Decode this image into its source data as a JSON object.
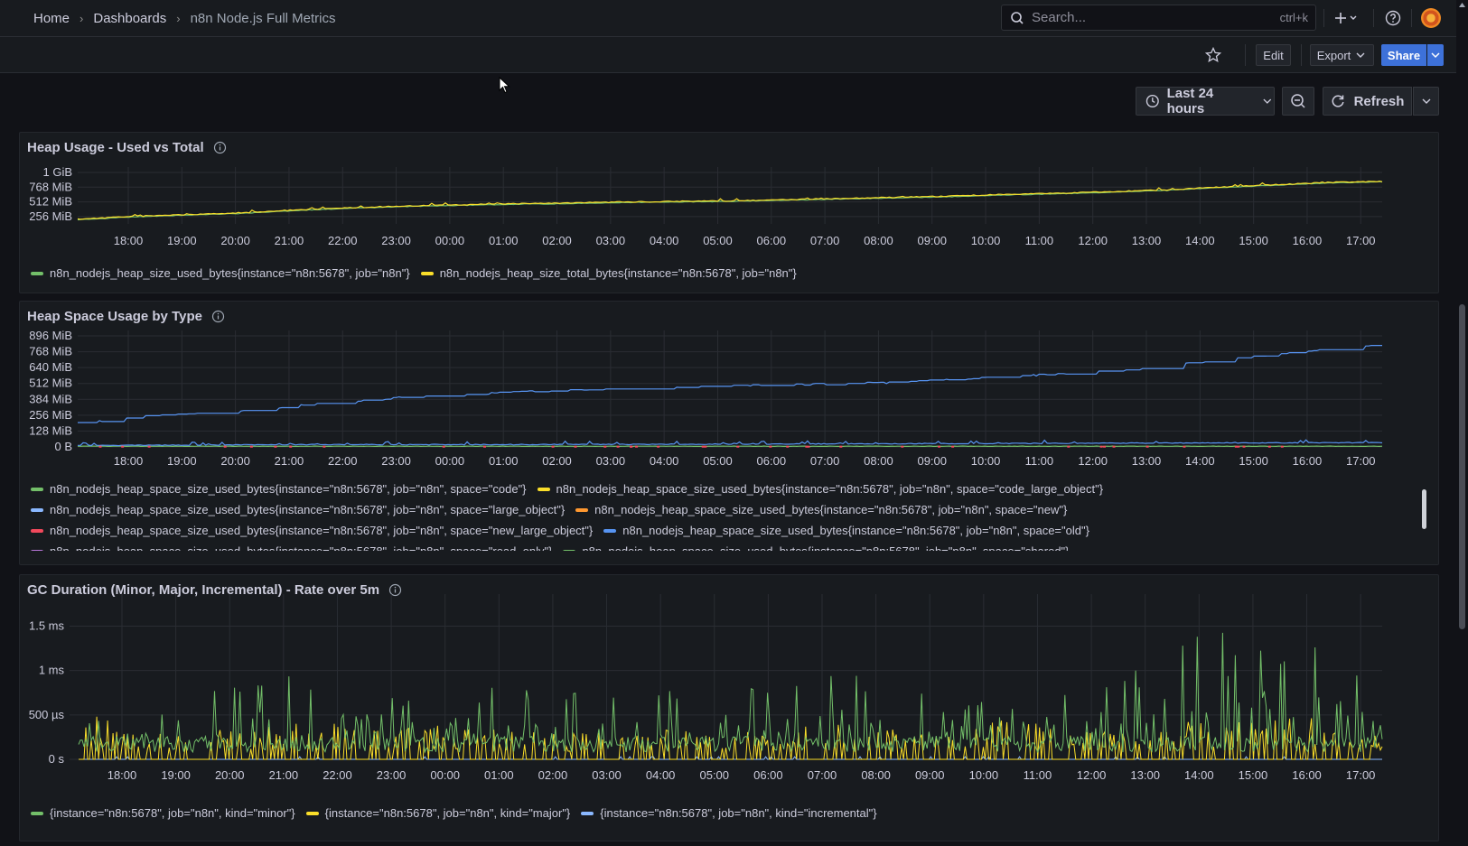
{
  "breadcrumb": {
    "home": "Home",
    "dashboards": "Dashboards",
    "current": "n8n Node.js Full Metrics"
  },
  "search": {
    "placeholder": "Search...",
    "shortcut": "ctrl+k"
  },
  "toolbar": {
    "edit": "Edit",
    "export": "Export",
    "share": "Share"
  },
  "timebar": {
    "range": "Last 24 hours",
    "refresh": "Refresh"
  },
  "colors": {
    "green": "#73bf69",
    "yellow": "#fade2a",
    "blue": "#8ab8ff",
    "orange": "#ff9830",
    "red": "#f2495c",
    "midblue": "#5794f2",
    "purple": "#b877d9"
  },
  "panels": [
    {
      "title": "Heap Usage - Used vs Total",
      "legend": [
        {
          "label": "n8n_nodejs_heap_size_used_bytes{instance=\"n8n:5678\", job=\"n8n\"}",
          "color": "#73bf69"
        },
        {
          "label": "n8n_nodejs_heap_size_total_bytes{instance=\"n8n:5678\", job=\"n8n\"}",
          "color": "#fade2a"
        }
      ]
    },
    {
      "title": "Heap Space Usage by Type",
      "legend": [
        {
          "label": "n8n_nodejs_heap_space_size_used_bytes{instance=\"n8n:5678\", job=\"n8n\", space=\"code\"}",
          "color": "#73bf69"
        },
        {
          "label": "n8n_nodejs_heap_space_size_used_bytes{instance=\"n8n:5678\", job=\"n8n\", space=\"code_large_object\"}",
          "color": "#fade2a"
        },
        {
          "label": "n8n_nodejs_heap_space_size_used_bytes{instance=\"n8n:5678\", job=\"n8n\", space=\"large_object\"}",
          "color": "#8ab8ff"
        },
        {
          "label": "n8n_nodejs_heap_space_size_used_bytes{instance=\"n8n:5678\", job=\"n8n\", space=\"new\"}",
          "color": "#ff9830"
        },
        {
          "label": "n8n_nodejs_heap_space_size_used_bytes{instance=\"n8n:5678\", job=\"n8n\", space=\"new_large_object\"}",
          "color": "#f2495c"
        },
        {
          "label": "n8n_nodejs_heap_space_size_used_bytes{instance=\"n8n:5678\", job=\"n8n\", space=\"old\"}",
          "color": "#5794f2"
        },
        {
          "label": "n8n_nodejs_heap_space_size_used_bytes{instance=\"n8n:5678\", job=\"n8n\", space=\"read_only\"}",
          "color": "#b877d9"
        },
        {
          "label": "n8n_nodejs_heap_space_size_used_bytes{instance=\"n8n:5678\", job=\"n8n\", space=\"shared\"}",
          "color": "#73bf69"
        }
      ]
    },
    {
      "title": "GC Duration (Minor, Major, Incremental) - Rate over 5m",
      "legend": [
        {
          "label": "{instance=\"n8n:5678\", job=\"n8n\", kind=\"minor\"}",
          "color": "#73bf69"
        },
        {
          "label": "{instance=\"n8n:5678\", job=\"n8n\", kind=\"major\"}",
          "color": "#fade2a"
        },
        {
          "label": "{instance=\"n8n:5678\", job=\"n8n\", kind=\"incremental\"}",
          "color": "#8ab8ff"
        }
      ]
    }
  ],
  "chart_data": [
    {
      "type": "line",
      "title": "Heap Usage - Used vs Total",
      "x_ticks": [
        "18:00",
        "19:00",
        "20:00",
        "21:00",
        "22:00",
        "23:00",
        "00:00",
        "01:00",
        "02:00",
        "03:00",
        "04:00",
        "05:00",
        "06:00",
        "07:00",
        "08:00",
        "09:00",
        "10:00",
        "11:00",
        "12:00",
        "13:00",
        "14:00",
        "15:00",
        "16:00",
        "17:00"
      ],
      "y_ticks": [
        "256 MiB",
        "512 MiB",
        "768 MiB",
        "1 GiB"
      ],
      "ylim_mib": [
        128,
        1024
      ],
      "series": [
        {
          "name": "n8n_nodejs_heap_size_used_bytes{instance=\"n8n:5678\", job=\"n8n\"}",
          "x": [
            "17:00",
            "18:00",
            "19:00",
            "20:00",
            "21:00",
            "22:00",
            "23:00",
            "00:00",
            "01:00",
            "02:00",
            "03:00",
            "04:00",
            "05:00",
            "06:00",
            "07:00",
            "08:00",
            "09:00",
            "10:00",
            "11:00",
            "12:00",
            "13:00",
            "14:00",
            "15:00",
            "16:00",
            "17:00"
          ],
          "values_mib": [
            200,
            250,
            280,
            310,
            360,
            400,
            430,
            450,
            470,
            480,
            500,
            510,
            520,
            540,
            560,
            580,
            600,
            630,
            650,
            680,
            710,
            760,
            800,
            840,
            860
          ]
        },
        {
          "name": "n8n_nodejs_heap_size_total_bytes{instance=\"n8n:5678\", job=\"n8n\"}",
          "x": [
            "17:00",
            "18:00",
            "19:00",
            "20:00",
            "21:00",
            "22:00",
            "23:00",
            "00:00",
            "01:00",
            "02:00",
            "03:00",
            "04:00",
            "05:00",
            "06:00",
            "07:00",
            "08:00",
            "09:00",
            "10:00",
            "11:00",
            "12:00",
            "13:00",
            "14:00",
            "15:00",
            "16:00",
            "17:00"
          ],
          "values_mib": [
            210,
            260,
            290,
            320,
            370,
            410,
            440,
            460,
            480,
            490,
            510,
            520,
            530,
            550,
            570,
            590,
            610,
            640,
            660,
            690,
            720,
            770,
            810,
            850,
            870
          ]
        }
      ]
    },
    {
      "type": "line",
      "title": "Heap Space Usage by Type",
      "x_ticks": [
        "18:00",
        "19:00",
        "20:00",
        "21:00",
        "22:00",
        "23:00",
        "00:00",
        "01:00",
        "02:00",
        "03:00",
        "04:00",
        "05:00",
        "06:00",
        "07:00",
        "08:00",
        "09:00",
        "10:00",
        "11:00",
        "12:00",
        "13:00",
        "14:00",
        "15:00",
        "16:00",
        "17:00"
      ],
      "y_ticks": [
        "0 B",
        "128 MiB",
        "256 MiB",
        "384 MiB",
        "512 MiB",
        "640 MiB",
        "768 MiB",
        "896 MiB"
      ],
      "ylim_mib": [
        0,
        896
      ],
      "series": [
        {
          "name": "old",
          "x": [
            "17:00",
            "18:00",
            "19:00",
            "20:00",
            "21:00",
            "22:00",
            "23:00",
            "00:00",
            "01:00",
            "02:00",
            "03:00",
            "04:00",
            "05:00",
            "06:00",
            "07:00",
            "08:00",
            "09:00",
            "10:00",
            "11:00",
            "12:00",
            "13:00",
            "14:00",
            "15:00",
            "16:00",
            "17:00"
          ],
          "values_mib": [
            190,
            240,
            270,
            290,
            330,
            370,
            400,
            420,
            440,
            460,
            470,
            480,
            490,
            500,
            510,
            520,
            540,
            560,
            590,
            620,
            650,
            700,
            740,
            790,
            820
          ]
        },
        {
          "name": "new",
          "x": [
            "17:00",
            "21:00",
            "01:00",
            "05:00",
            "09:00",
            "13:00",
            "17:00"
          ],
          "values_mib": [
            8,
            16,
            16,
            20,
            24,
            28,
            32
          ]
        },
        {
          "name": "code",
          "x": [
            "17:00",
            "17:00"
          ],
          "values_mib": [
            4,
            4
          ]
        }
      ]
    },
    {
      "type": "line",
      "title": "GC Duration (Minor, Major, Incremental) - Rate over 5m",
      "x_ticks": [
        "18:00",
        "19:00",
        "20:00",
        "21:00",
        "22:00",
        "23:00",
        "00:00",
        "01:00",
        "02:00",
        "03:00",
        "04:00",
        "05:00",
        "06:00",
        "07:00",
        "08:00",
        "09:00",
        "10:00",
        "11:00",
        "12:00",
        "13:00",
        "14:00",
        "15:00",
        "16:00",
        "17:00"
      ],
      "y_ticks": [
        "0 s",
        "500 µs",
        "1 ms",
        "1.5 ms"
      ],
      "ylim_ms": [
        0,
        1.5
      ],
      "series": [
        {
          "name": "{instance=\"n8n:5678\", job=\"n8n\", kind=\"minor\"}",
          "x": [
            "17:00",
            "18:00",
            "19:00",
            "20:00",
            "21:00",
            "22:00",
            "23:00",
            "00:00",
            "01:00",
            "02:00",
            "03:00",
            "04:00",
            "05:00",
            "06:00",
            "07:00",
            "08:00",
            "09:00",
            "10:00",
            "11:00",
            "12:00",
            "13:00",
            "14:00",
            "15:00",
            "16:00",
            "17:00"
          ],
          "peaks_ms": [
            0.4,
            0.5,
            0.6,
            1.0,
            1.1,
            0.9,
            0.8,
            0.85,
            0.8,
            0.8,
            0.75,
            0.8,
            0.85,
            0.8,
            1.0,
            0.9,
            0.95,
            1.35,
            0.85,
            0.9,
            1.2,
            1.6,
            1.4,
            1.25,
            0.8
          ]
        },
        {
          "name": "{instance=\"n8n:5678\", job=\"n8n\", kind=\"major\"}",
          "x": [
            "17:00",
            "18:00",
            "19:00",
            "20:00",
            "21:00",
            "22:00",
            "23:00",
            "00:00",
            "01:00",
            "02:00",
            "03:00",
            "04:00",
            "05:00",
            "06:00",
            "07:00",
            "08:00",
            "09:00",
            "10:00",
            "11:00",
            "12:00",
            "13:00",
            "14:00",
            "15:00",
            "16:00",
            "17:00"
          ],
          "peaks_ms": [
            0.55,
            0.35,
            0.3,
            0.35,
            0.4,
            0.4,
            0.35,
            0.4,
            0.35,
            0.3,
            0.3,
            0.35,
            0.3,
            0.35,
            0.4,
            0.35,
            0.4,
            0.45,
            0.4,
            0.35,
            0.4,
            0.45,
            0.5,
            0.45,
            0.3
          ]
        },
        {
          "name": "{instance=\"n8n:5678\", job=\"n8n\", kind=\"incremental\"}",
          "x": [
            "17:00",
            "17:00"
          ],
          "peaks_ms": [
            0.02,
            0.02
          ]
        }
      ]
    }
  ]
}
